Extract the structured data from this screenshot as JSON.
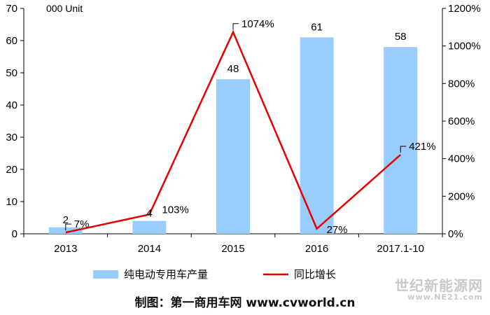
{
  "chart_data": {
    "type": "bar+line",
    "unit_label": "000 Unit",
    "categories": [
      "2013",
      "2014",
      "2015",
      "2016",
      "2017.1-10"
    ],
    "bar_series": {
      "name": "纯电动专用车产量",
      "values": [
        2,
        4,
        48,
        61,
        58
      ],
      "labels": [
        "2",
        "4",
        "48",
        "61",
        "58"
      ],
      "color": "#99CCFF"
    },
    "line_series": {
      "name": "同比增长",
      "values": [
        7,
        103,
        1074,
        27,
        421
      ],
      "labels": [
        "7%",
        "103%",
        "1074%",
        "27%",
        "421%"
      ],
      "color": "#E60000"
    },
    "ylim_left": [
      0,
      70
    ],
    "yticks_left": [
      "0",
      "10",
      "20",
      "30",
      "40",
      "50",
      "60",
      "70"
    ],
    "ylim_right": [
      0,
      1200
    ],
    "yticks_right": [
      "0%",
      "200%",
      "400%",
      "600%",
      "800%",
      "1000%",
      "1200%"
    ],
    "grid": false,
    "legend_position": "bottom"
  },
  "credit": "制图：第一商用车网 www.cvworld.cn",
  "watermark": {
    "title": "世纪新能源网",
    "url": "www.NE21.com"
  }
}
